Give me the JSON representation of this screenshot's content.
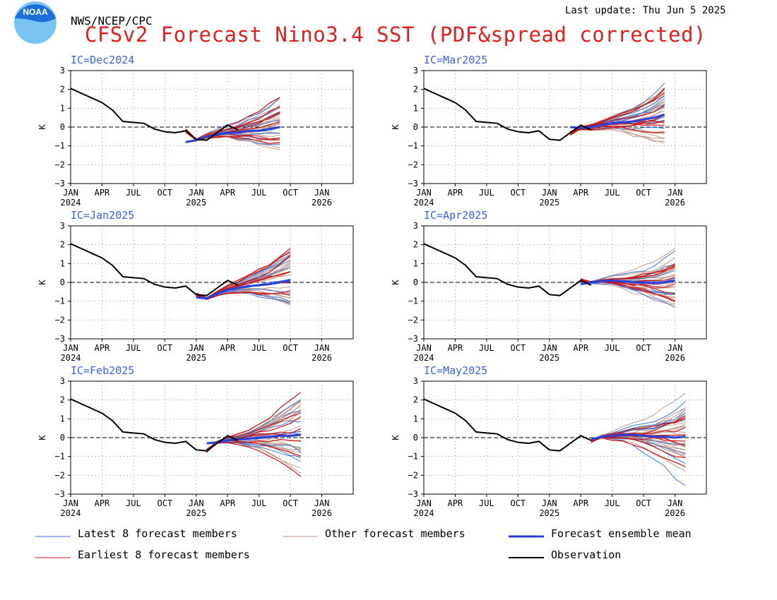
{
  "header": {
    "agency": "NWS/NCEP/CPC",
    "last_update": "Last update: Thu Jun 5 2025",
    "title": "CFSv2 Forecast Nino3.4 SST (PDF&spread corrected)",
    "logo_text": "NOAA"
  },
  "colors": {
    "title": "#e0201f",
    "ic_label": "#3a63d8",
    "latest_members": "#3b78d8",
    "earliest_members": "#c8141b",
    "other_members": "#c39a8a",
    "ensemble_mean": "#2a3fd6",
    "observation": "#000000",
    "grid": "#9a9a9a",
    "logo_blue": "#1e6fd8",
    "logo_light": "#79c4f2"
  },
  "legend": [
    {
      "label": "Latest 8 forecast members",
      "color": "#3b78d8",
      "width": 1
    },
    {
      "label": "Other forecast members",
      "color": "#c39a8a",
      "width": 1
    },
    {
      "label": "Forecast ensemble mean",
      "color": "#2a3fd6",
      "width": 3
    },
    {
      "label": "Earliest 8 forecast members",
      "color": "#c8141b",
      "width": 1
    },
    {
      "label": "Observation",
      "color": "#000000",
      "width": 2
    }
  ],
  "chart_data": [
    {
      "type": "line",
      "ic": "IC=Dec2024",
      "ic_month": 11,
      "ylabel": "K",
      "ylim": [
        -3,
        3
      ],
      "yticks": [
        3,
        2,
        1,
        0,
        -1,
        -2,
        -3
      ],
      "xticks": [
        "JAN",
        "APR",
        "JUL",
        "OCT",
        "JAN",
        "APR",
        "JUL",
        "OCT",
        "JAN"
      ],
      "year_labels": [
        "2024",
        "2025",
        "2026"
      ],
      "forecast_len": 10,
      "mean": [
        -0.8,
        -0.7,
        -0.5,
        -0.4,
        -0.3,
        -0.3,
        -0.2,
        -0.2,
        -0.1,
        0.0
      ],
      "spread": [
        0.15,
        0.2,
        0.3,
        0.4,
        0.5,
        0.6,
        0.7,
        0.8,
        0.9,
        1.0
      ],
      "tail_offsets": [
        -1.2,
        1.4,
        0.9,
        -0.8,
        0.6,
        1.1,
        -0.5,
        0.3
      ]
    },
    {
      "type": "line",
      "ic": "IC=Mar2025",
      "ic_month": 14,
      "ylabel": "K",
      "ylim": [
        -3,
        3
      ],
      "yticks": [
        3,
        2,
        1,
        0,
        -1,
        -2,
        -3
      ],
      "xticks": [
        "JAN",
        "APR",
        "JUL",
        "OCT",
        "JAN",
        "APR",
        "JUL",
        "OCT",
        "JAN"
      ],
      "year_labels": [
        "2024",
        "2025",
        "2026"
      ],
      "forecast_len": 10,
      "mean": [
        0.0,
        -0.05,
        0.0,
        0.1,
        0.2,
        0.25,
        0.3,
        0.4,
        0.5,
        0.65
      ],
      "spread": [
        0.15,
        0.25,
        0.35,
        0.45,
        0.55,
        0.65,
        0.75,
        0.85,
        0.95,
        1.05
      ],
      "tail_offsets": [
        1.3,
        -0.9,
        1.6,
        -1.4,
        0.7,
        -0.4,
        1.0,
        0.2
      ]
    },
    {
      "type": "line",
      "ic": "IC=Jan2025",
      "ic_month": 12,
      "ylabel": "K",
      "ylim": [
        -3,
        3
      ],
      "yticks": [
        3,
        2,
        1,
        0,
        -1,
        -2,
        -3
      ],
      "xticks": [
        "JAN",
        "APR",
        "JUL",
        "OCT",
        "JAN",
        "APR",
        "JUL",
        "OCT",
        "JAN"
      ],
      "year_labels": [
        "2024",
        "2025",
        "2026"
      ],
      "forecast_len": 10,
      "mean": [
        -0.8,
        -0.85,
        -0.6,
        -0.4,
        -0.3,
        -0.2,
        -0.15,
        -0.1,
        0.0,
        0.1
      ],
      "spread": [
        0.15,
        0.2,
        0.3,
        0.4,
        0.5,
        0.6,
        0.7,
        0.8,
        0.9,
        1.0
      ],
      "tail_offsets": [
        1.8,
        -1.5,
        1.1,
        -1.0,
        0.8,
        0.4,
        -0.6,
        1.4
      ]
    },
    {
      "type": "line",
      "ic": "IC=Apr2025",
      "ic_month": 15,
      "ylabel": "K",
      "ylim": [
        -3,
        3
      ],
      "yticks": [
        3,
        2,
        1,
        0,
        -1,
        -2,
        -3
      ],
      "xticks": [
        "JAN",
        "APR",
        "JUL",
        "OCT",
        "JAN",
        "APR",
        "JUL",
        "OCT",
        "JAN"
      ],
      "year_labels": [
        "2024",
        "2025",
        "2026"
      ],
      "forecast_len": 10,
      "mean": [
        -0.1,
        0.0,
        0.05,
        0.1,
        0.05,
        0.0,
        0.0,
        -0.05,
        0.0,
        0.1
      ],
      "spread": [
        0.15,
        0.3,
        0.4,
        0.5,
        0.6,
        0.7,
        0.8,
        0.9,
        1.0,
        1.1
      ],
      "tail_offsets": [
        1.7,
        -1.6,
        1.2,
        -1.2,
        0.9,
        -0.7,
        0.4,
        -0.3
      ]
    },
    {
      "type": "line",
      "ic": "IC=Feb2025",
      "ic_month": 13,
      "ylabel": "K",
      "ylim": [
        -3,
        3
      ],
      "yticks": [
        3,
        2,
        1,
        0,
        -1,
        -2,
        -3
      ],
      "xticks": [
        "JAN",
        "APR",
        "JUL",
        "OCT",
        "JAN",
        "APR",
        "JUL",
        "OCT",
        "JAN"
      ],
      "year_labels": [
        "2024",
        "2025",
        "2026"
      ],
      "forecast_len": 10,
      "mean": [
        -0.3,
        -0.25,
        -0.15,
        -0.1,
        -0.05,
        0.0,
        0.05,
        0.1,
        0.1,
        0.15
      ],
      "spread": [
        0.15,
        0.25,
        0.35,
        0.45,
        0.55,
        0.7,
        0.85,
        1.0,
        1.15,
        1.3
      ],
      "tail_offsets": [
        2.3,
        -2.1,
        1.6,
        -1.2,
        0.9,
        -0.8,
        1.2,
        -0.5
      ]
    },
    {
      "type": "line",
      "ic": "IC=May2025",
      "ic_month": 16,
      "ylabel": "K",
      "ylim": [
        -3,
        3
      ],
      "yticks": [
        3,
        2,
        1,
        0,
        -1,
        -2,
        -3
      ],
      "xticks": [
        "JAN",
        "APR",
        "JUL",
        "OCT",
        "JAN",
        "APR",
        "JUL",
        "OCT",
        "JAN"
      ],
      "year_labels": [
        "2024",
        "2025",
        "2026"
      ],
      "forecast_len": 10,
      "mean": [
        -0.1,
        0.05,
        0.1,
        0.15,
        0.15,
        0.1,
        0.05,
        0.05,
        0.0,
        0.05
      ],
      "spread": [
        0.15,
        0.3,
        0.45,
        0.6,
        0.7,
        0.8,
        0.9,
        1.0,
        1.05,
        1.1
      ],
      "tail_offsets": [
        1.5,
        -2.0,
        1.7,
        -1.1,
        0.8,
        -0.6,
        1.2,
        -0.9
      ]
    }
  ],
  "observation": {
    "start_month": 0,
    "values": [
      2.05,
      1.8,
      1.55,
      1.3,
      0.9,
      0.3,
      0.25,
      0.2,
      -0.1,
      -0.25,
      -0.3,
      -0.2,
      -0.65,
      -0.7,
      -0.3,
      0.1,
      -0.15
    ]
  }
}
